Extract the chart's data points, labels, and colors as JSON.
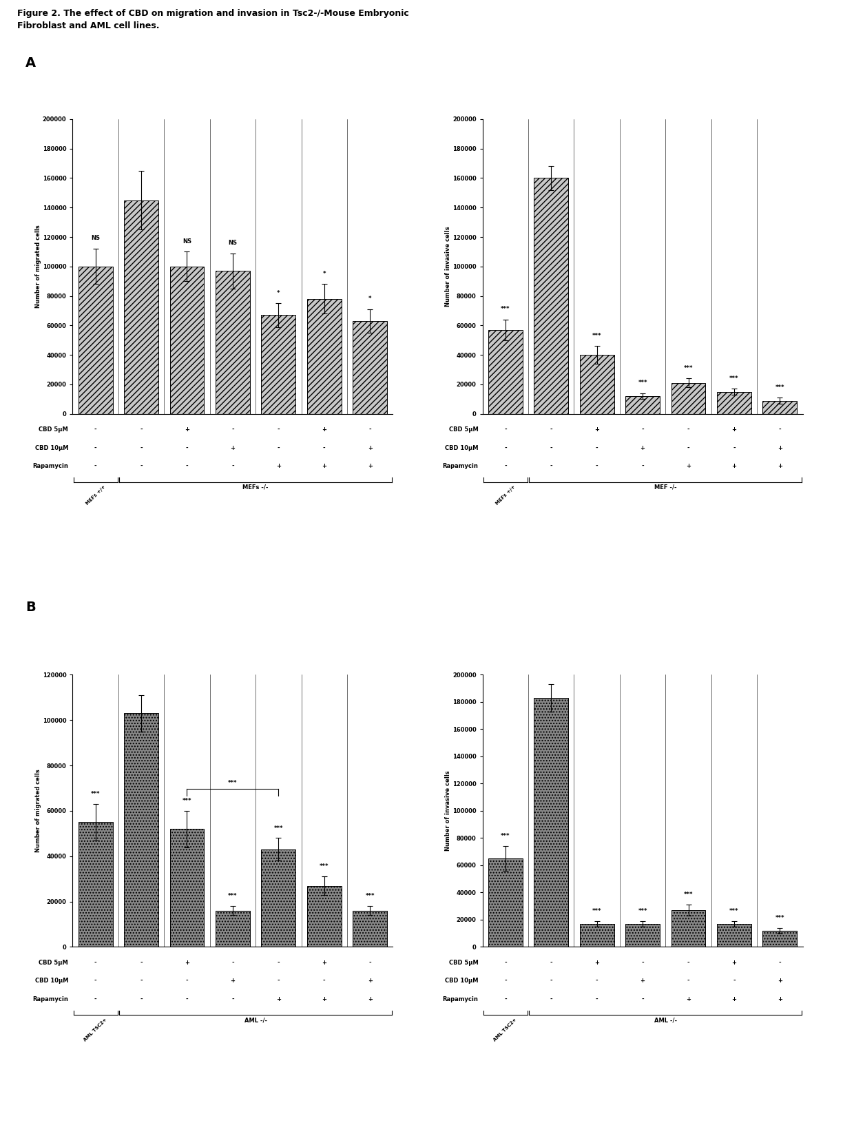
{
  "figure_title_line1": "Figure 2. The effect of CBD on migration and invasion in Tsc2-/-Mouse Embryonic",
  "figure_title_line2": "Fibroblast and AML cell lines.",
  "panel_A_left": {
    "ylabel": "Number of migrated cells",
    "ylim": [
      0,
      200000
    ],
    "yticks": [
      0,
      20000,
      40000,
      60000,
      80000,
      100000,
      120000,
      140000,
      160000,
      180000,
      200000
    ],
    "bars": [
      100000,
      145000,
      100000,
      97000,
      67000,
      78000,
      63000
    ],
    "errors": [
      12000,
      20000,
      10000,
      12000,
      8000,
      10000,
      8000
    ],
    "sig_labels": [
      "NS",
      null,
      "NS",
      "NS",
      "*",
      "*",
      "*"
    ],
    "group1_label": "MEFs +/+",
    "group2_label": "MEFs -/-",
    "x_labels_cbd5": [
      "-",
      "-",
      "+",
      "-",
      "-",
      "+",
      "-"
    ],
    "x_labels_cbd10": [
      "-",
      "-",
      "-",
      "+",
      "-",
      "-",
      "+"
    ],
    "x_labels_rap": [
      "-",
      "-",
      "-",
      "-",
      "+",
      "+",
      "+"
    ],
    "bar_color": "#c8c8c8",
    "hatch": "////"
  },
  "panel_A_right": {
    "ylabel": "Number of invasive cells",
    "ylim": [
      0,
      200000
    ],
    "yticks": [
      0,
      20000,
      40000,
      60000,
      80000,
      100000,
      120000,
      140000,
      160000,
      180000,
      200000
    ],
    "bars": [
      57000,
      160000,
      40000,
      12000,
      21000,
      15000,
      9000
    ],
    "errors": [
      7000,
      8000,
      6000,
      2000,
      3000,
      2000,
      2000
    ],
    "sig_labels": [
      "***",
      null,
      "***",
      "***",
      "***",
      "***",
      "***"
    ],
    "group1_label": "MEFs +/+",
    "group2_label": "MEF -/-",
    "x_labels_cbd5": [
      "-",
      "-",
      "+",
      "-",
      "-",
      "+",
      "-"
    ],
    "x_labels_cbd10": [
      "-",
      "-",
      "-",
      "+",
      "-",
      "-",
      "+"
    ],
    "x_labels_rap": [
      "-",
      "-",
      "-",
      "-",
      "+",
      "+",
      "+"
    ],
    "bar_color": "#c8c8c8",
    "hatch": "////"
  },
  "panel_B_left": {
    "ylabel": "Number of migrated cells",
    "ylim": [
      0,
      120000
    ],
    "yticks": [
      0,
      20000,
      40000,
      60000,
      80000,
      100000,
      120000
    ],
    "bars": [
      55000,
      103000,
      52000,
      16000,
      43000,
      27000,
      16000
    ],
    "errors": [
      8000,
      8000,
      8000,
      2000,
      5000,
      4000,
      2000
    ],
    "sig_labels": [
      "***",
      null,
      "***",
      "***",
      "***",
      "***",
      "***"
    ],
    "bracket_bars": [
      2,
      4
    ],
    "bracket_label": "***",
    "group1_label": "AML TSC2+",
    "group2_label": "AML -/-",
    "x_labels_cbd5": [
      "-",
      "-",
      "+",
      "-",
      "-",
      "+",
      "-"
    ],
    "x_labels_cbd10": [
      "-",
      "-",
      "-",
      "+",
      "-",
      "-",
      "+"
    ],
    "x_labels_rap": [
      "-",
      "-",
      "-",
      "-",
      "+",
      "+",
      "+"
    ],
    "bar_color": "#888888",
    "hatch": "...."
  },
  "panel_B_right": {
    "ylabel": "Number of invasive cells",
    "ylim": [
      0,
      200000
    ],
    "yticks": [
      0,
      20000,
      40000,
      60000,
      80000,
      100000,
      120000,
      140000,
      160000,
      180000,
      200000
    ],
    "bars": [
      65000,
      183000,
      17000,
      17000,
      27000,
      17000,
      12000
    ],
    "errors": [
      9000,
      10000,
      2000,
      2000,
      4000,
      2000,
      2000
    ],
    "sig_labels": [
      "***",
      null,
      "***",
      "***",
      "***",
      "***",
      "***"
    ],
    "group1_label": "AML TSC2+",
    "group2_label": "AML -/-",
    "x_labels_cbd5": [
      "-",
      "-",
      "+",
      "-",
      "-",
      "+",
      "-"
    ],
    "x_labels_cbd10": [
      "-",
      "-",
      "-",
      "+",
      "-",
      "-",
      "+"
    ],
    "x_labels_rap": [
      "-",
      "-",
      "-",
      "-",
      "+",
      "+",
      "+"
    ],
    "bar_color": "#888888",
    "hatch": "...."
  },
  "bg_color": "#ffffff",
  "bar_edge_color": "#000000",
  "tick_fontsize": 6,
  "ylabel_fontsize": 6,
  "annot_fontsize": 6,
  "table_fontsize": 6,
  "group_label_fontsize": 6,
  "panel_label_fontsize": 14
}
